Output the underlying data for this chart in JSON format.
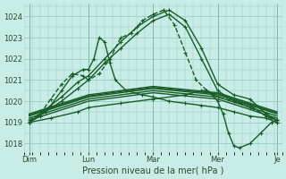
{
  "xlabel": "Pression niveau de la mer( hPa )",
  "bg_color": "#c8ece6",
  "plot_bg_color": "#c8ece6",
  "grid_color": "#90c8be",
  "line_color": "#1a5c28",
  "yticks": [
    1018,
    1019,
    1020,
    1021,
    1022,
    1023,
    1024
  ],
  "ylim": [
    1017.6,
    1024.6
  ],
  "xlim": [
    0.0,
    96.0
  ],
  "xtick_labels": [
    "Dim",
    "Lun",
    "Mar",
    "Mer",
    "Je"
  ],
  "xtick_positions": [
    2,
    24,
    48,
    72,
    94
  ],
  "vline_positions": [
    2,
    24,
    48,
    72,
    94
  ],
  "series": [
    {
      "x": [
        2,
        8,
        14,
        20,
        24,
        30,
        36,
        42,
        48,
        54,
        60,
        66,
        72,
        78,
        84,
        90,
        94
      ],
      "y": [
        1019.0,
        1019.6,
        1020.2,
        1020.9,
        1021.2,
        1022.0,
        1022.8,
        1023.5,
        1024.0,
        1024.3,
        1023.8,
        1022.5,
        1020.8,
        1020.3,
        1020.1,
        1019.4,
        1019.1
      ],
      "style": "solid",
      "marker": "+",
      "lw": 1.0
    },
    {
      "x": [
        2,
        8,
        14,
        20,
        24,
        30,
        36,
        42,
        48,
        54,
        60,
        66,
        72,
        78,
        84,
        90,
        94
      ],
      "y": [
        1019.0,
        1019.5,
        1020.0,
        1020.6,
        1021.0,
        1021.8,
        1022.5,
        1023.2,
        1023.8,
        1024.1,
        1023.5,
        1022.0,
        1020.5,
        1020.0,
        1019.8,
        1019.3,
        1019.1
      ],
      "style": "solid",
      "marker": "+",
      "lw": 1.0
    },
    {
      "x": [
        2,
        6,
        10,
        14,
        18,
        22,
        24,
        28,
        32,
        36,
        40,
        44,
        48,
        52,
        56,
        60,
        64,
        68,
        72,
        78,
        84,
        90,
        94
      ],
      "y": [
        1019.1,
        1019.4,
        1020.1,
        1020.8,
        1021.3,
        1021.2,
        1021.0,
        1021.3,
        1022.0,
        1023.0,
        1023.2,
        1023.8,
        1024.1,
        1024.3,
        1023.6,
        1022.3,
        1021.0,
        1020.5,
        1020.2,
        1020.0,
        1019.7,
        1019.3,
        1019.0
      ],
      "style": "dashed",
      "marker": "+",
      "lw": 1.0
    },
    {
      "x": [
        2,
        24,
        48,
        72,
        94
      ],
      "y": [
        1019.1,
        1020.0,
        1020.4,
        1020.1,
        1019.2
      ],
      "style": "solid",
      "marker": null,
      "lw": 1.0
    },
    {
      "x": [
        2,
        24,
        48,
        72,
        94
      ],
      "y": [
        1019.2,
        1020.1,
        1020.5,
        1020.2,
        1019.3
      ],
      "style": "solid",
      "marker": null,
      "lw": 1.0
    },
    {
      "x": [
        2,
        24,
        48,
        72,
        94
      ],
      "y": [
        1019.3,
        1020.2,
        1020.6,
        1020.3,
        1019.4
      ],
      "style": "solid",
      "marker": null,
      "lw": 1.0
    },
    {
      "x": [
        2,
        24,
        48,
        72,
        94
      ],
      "y": [
        1019.35,
        1020.25,
        1020.65,
        1020.35,
        1019.45
      ],
      "style": "solid",
      "marker": null,
      "lw": 1.0
    },
    {
      "x": [
        2,
        24,
        48,
        72,
        94
      ],
      "y": [
        1019.4,
        1020.3,
        1020.7,
        1020.4,
        1019.5
      ],
      "style": "solid",
      "marker": null,
      "lw": 1.0
    },
    {
      "x": [
        2,
        6,
        10,
        14,
        18,
        22,
        24,
        26,
        28,
        30,
        32,
        34,
        38,
        44,
        48,
        54,
        60,
        66,
        72,
        78,
        84,
        90,
        94
      ],
      "y": [
        1019.0,
        1019.3,
        1019.8,
        1020.5,
        1021.2,
        1021.5,
        1021.5,
        1022.0,
        1023.0,
        1022.8,
        1021.8,
        1021.0,
        1020.5,
        1020.3,
        1020.2,
        1020.0,
        1019.9,
        1019.8,
        1019.7,
        1019.5,
        1019.3,
        1019.2,
        1019.0
      ],
      "style": "solid",
      "marker": "+",
      "lw": 1.0
    },
    {
      "x": [
        2,
        10,
        20,
        24,
        36,
        48,
        60,
        66,
        68,
        70,
        72,
        74,
        76,
        78,
        80,
        84,
        88,
        92,
        94
      ],
      "y": [
        1019.0,
        1019.2,
        1019.5,
        1019.7,
        1019.9,
        1020.1,
        1020.3,
        1020.5,
        1020.5,
        1020.3,
        1020.0,
        1019.4,
        1018.5,
        1017.9,
        1017.8,
        1018.0,
        1018.5,
        1019.0,
        1019.1
      ],
      "style": "solid",
      "marker": "+",
      "lw": 1.0
    }
  ]
}
